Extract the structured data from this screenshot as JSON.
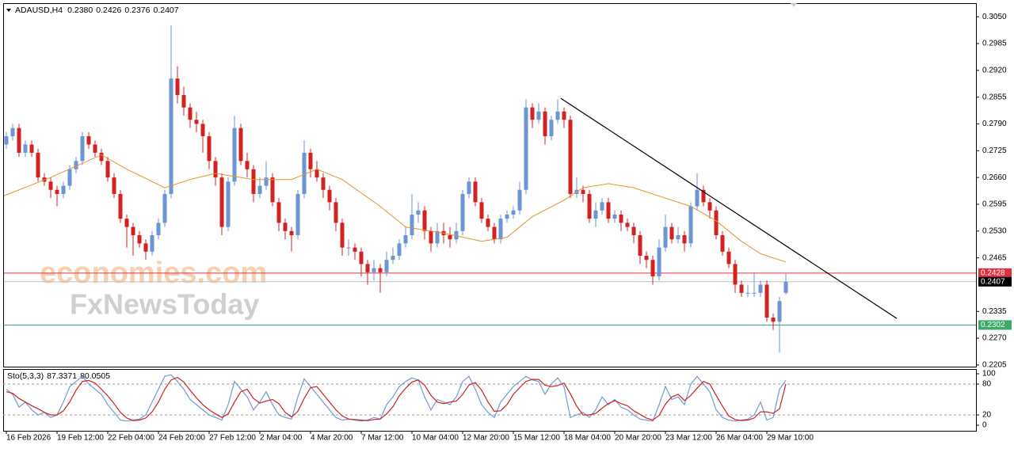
{
  "chart_data": {
    "type": "candlestick",
    "title": "ADAUSD,H4",
    "header_values": [
      "0.2380",
      "0.2426",
      "0.2376",
      "0.2407"
    ],
    "up_color": "#6b95d3",
    "down_color": "#d42020",
    "xlim": [
      -0.5,
      153
    ],
    "xticks": [
      {
        "value": 0,
        "label": "16 Feb 2026"
      },
      {
        "value": 8,
        "label": "19 Feb 12:00"
      },
      {
        "value": 16,
        "label": "22 Feb 04:00"
      },
      {
        "value": 24,
        "label": "24 Feb 20:00"
      },
      {
        "value": 32,
        "label": "27 Feb 12:00"
      },
      {
        "value": 40,
        "label": "2 Mar 04:00"
      },
      {
        "value": 48,
        "label": "4 Mar 20:00"
      },
      {
        "value": 56,
        "label": "7 Mar 12:00"
      },
      {
        "value": 64,
        "label": "10 Mar 04:00"
      },
      {
        "value": 72,
        "label": "12 Mar 20:00"
      },
      {
        "value": 80,
        "label": "15 Mar 12:00"
      },
      {
        "value": 88,
        "label": "18 Mar 04:00"
      },
      {
        "value": 96,
        "label": "20 Mar 20:00"
      },
      {
        "value": 104,
        "label": "23 Mar 12:00"
      },
      {
        "value": 112,
        "label": "26 Mar 04:00"
      },
      {
        "value": 120,
        "label": "29 Mar 10:00"
      }
    ],
    "ylim": [
      0.2201,
      0.3083
    ],
    "yticks": [
      {
        "value": 0.305,
        "label": "0.3050"
      },
      0.2985,
      {
        "value": 0.292,
        "label": "0.2920"
      },
      0.2855,
      {
        "value": 0.279,
        "label": "0.2790"
      },
      0.2725,
      {
        "value": 0.266,
        "label": "0.2660"
      },
      0.2595,
      {
        "value": 0.253,
        "label": "0.2530"
      },
      0.2465,
      0.2335,
      {
        "value": 0.227,
        "label": "0.2270"
      },
      0.2205
    ],
    "ohlc": [
      [
        0.274,
        0.277,
        0.273,
        0.276
      ],
      [
        0.276,
        0.279,
        0.275,
        0.278
      ],
      [
        0.278,
        0.279,
        0.271,
        0.272
      ],
      [
        0.272,
        0.275,
        0.271,
        0.274
      ],
      [
        0.274,
        0.275,
        0.271,
        0.272
      ],
      [
        0.272,
        0.273,
        0.265,
        0.266
      ],
      [
        0.266,
        0.267,
        0.264,
        0.265
      ],
      [
        0.265,
        0.266,
        0.261,
        0.263
      ],
      [
        0.263,
        0.264,
        0.259,
        0.262
      ],
      [
        0.262,
        0.265,
        0.261,
        0.264
      ],
      [
        0.264,
        0.269,
        0.263,
        0.268
      ],
      [
        0.268,
        0.271,
        0.267,
        0.27
      ],
      [
        0.27,
        0.277,
        0.269,
        0.276
      ],
      [
        0.276,
        0.277,
        0.273,
        0.274
      ],
      [
        0.274,
        0.275,
        0.271,
        0.272
      ],
      [
        0.272,
        0.273,
        0.269,
        0.27
      ],
      [
        0.27,
        0.271,
        0.265,
        0.266
      ],
      [
        0.266,
        0.267,
        0.261,
        0.262
      ],
      [
        0.262,
        0.263,
        0.255,
        0.256
      ],
      [
        0.256,
        0.257,
        0.249,
        0.254
      ],
      [
        0.254,
        0.255,
        0.247,
        0.252
      ],
      [
        0.252,
        0.253,
        0.249,
        0.25
      ],
      [
        0.25,
        0.251,
        0.246,
        0.248
      ],
      [
        0.248,
        0.253,
        0.247,
        0.252
      ],
      [
        0.252,
        0.256,
        0.251,
        0.255
      ],
      [
        0.255,
        0.263,
        0.254,
        0.262
      ],
      [
        0.262,
        0.303,
        0.261,
        0.29
      ],
      [
        0.29,
        0.293,
        0.284,
        0.286
      ],
      [
        0.286,
        0.288,
        0.281,
        0.283
      ],
      [
        0.283,
        0.284,
        0.278,
        0.28
      ],
      [
        0.28,
        0.282,
        0.277,
        0.279
      ],
      [
        0.279,
        0.28,
        0.272,
        0.276
      ],
      [
        0.276,
        0.277,
        0.268,
        0.27
      ],
      [
        0.27,
        0.271,
        0.264,
        0.266
      ],
      [
        0.266,
        0.267,
        0.252,
        0.254
      ],
      [
        0.254,
        0.266,
        0.253,
        0.265
      ],
      [
        0.265,
        0.281,
        0.264,
        0.278
      ],
      [
        0.278,
        0.279,
        0.269,
        0.27
      ],
      [
        0.27,
        0.272,
        0.266,
        0.268
      ],
      [
        0.268,
        0.269,
        0.26,
        0.262
      ],
      [
        0.262,
        0.266,
        0.261,
        0.264
      ],
      [
        0.264,
        0.27,
        0.263,
        0.266
      ],
      [
        0.266,
        0.267,
        0.259,
        0.26
      ],
      [
        0.26,
        0.261,
        0.253,
        0.255
      ],
      [
        0.255,
        0.256,
        0.251,
        0.253
      ],
      [
        0.253,
        0.254,
        0.248,
        0.252
      ],
      [
        0.252,
        0.263,
        0.251,
        0.262
      ],
      [
        0.262,
        0.275,
        0.261,
        0.272
      ],
      [
        0.272,
        0.273,
        0.266,
        0.268
      ],
      [
        0.268,
        0.27,
        0.265,
        0.266
      ],
      [
        0.266,
        0.267,
        0.261,
        0.263
      ],
      [
        0.263,
        0.264,
        0.258,
        0.26
      ],
      [
        0.26,
        0.261,
        0.253,
        0.255
      ],
      [
        0.255,
        0.256,
        0.247,
        0.249
      ],
      [
        0.249,
        0.251,
        0.247,
        0.249
      ],
      [
        0.249,
        0.25,
        0.246,
        0.248
      ],
      [
        0.248,
        0.249,
        0.242,
        0.245
      ],
      [
        0.245,
        0.246,
        0.24,
        0.243
      ],
      [
        0.243,
        0.246,
        0.241,
        0.244
      ],
      [
        0.244,
        0.245,
        0.238,
        0.243
      ],
      [
        0.243,
        0.248,
        0.242,
        0.246
      ],
      [
        0.246,
        0.249,
        0.245,
        0.247
      ],
      [
        0.247,
        0.251,
        0.246,
        0.25
      ],
      [
        0.25,
        0.254,
        0.249,
        0.252
      ],
      [
        0.252,
        0.262,
        0.251,
        0.257
      ],
      [
        0.257,
        0.26,
        0.255,
        0.258
      ],
      [
        0.258,
        0.259,
        0.251,
        0.253
      ],
      [
        0.253,
        0.254,
        0.248,
        0.25
      ],
      [
        0.25,
        0.255,
        0.249,
        0.253
      ],
      [
        0.253,
        0.255,
        0.25,
        0.252
      ],
      [
        0.252,
        0.254,
        0.249,
        0.251
      ],
      [
        0.251,
        0.255,
        0.25,
        0.253
      ],
      [
        0.253,
        0.263,
        0.252,
        0.262
      ],
      [
        0.262,
        0.266,
        0.261,
        0.265
      ],
      [
        0.265,
        0.266,
        0.259,
        0.26
      ],
      [
        0.26,
        0.261,
        0.255,
        0.256
      ],
      [
        0.256,
        0.257,
        0.253,
        0.254
      ],
      [
        0.254,
        0.255,
        0.25,
        0.251
      ],
      [
        0.251,
        0.257,
        0.25,
        0.256
      ],
      [
        0.256,
        0.258,
        0.255,
        0.257
      ],
      [
        0.257,
        0.259,
        0.256,
        0.258
      ],
      [
        0.258,
        0.265,
        0.257,
        0.263
      ],
      [
        0.263,
        0.285,
        0.262,
        0.283
      ],
      [
        0.283,
        0.284,
        0.278,
        0.28
      ],
      [
        0.28,
        0.284,
        0.279,
        0.282
      ],
      [
        0.282,
        0.283,
        0.274,
        0.276
      ],
      [
        0.276,
        0.281,
        0.275,
        0.28
      ],
      [
        0.28,
        0.285,
        0.279,
        0.282
      ],
      [
        0.282,
        0.283,
        0.278,
        0.28
      ],
      [
        0.28,
        0.281,
        0.261,
        0.262
      ],
      [
        0.262,
        0.266,
        0.261,
        0.263
      ],
      [
        0.263,
        0.264,
        0.26,
        0.262
      ],
      [
        0.262,
        0.263,
        0.255,
        0.256
      ],
      [
        0.256,
        0.26,
        0.254,
        0.258
      ],
      [
        0.258,
        0.261,
        0.257,
        0.26
      ],
      [
        0.26,
        0.261,
        0.255,
        0.256
      ],
      [
        0.256,
        0.258,
        0.255,
        0.257
      ],
      [
        0.257,
        0.258,
        0.253,
        0.255
      ],
      [
        0.255,
        0.256,
        0.253,
        0.254
      ],
      [
        0.254,
        0.255,
        0.25,
        0.252
      ],
      [
        0.252,
        0.253,
        0.245,
        0.247
      ],
      [
        0.247,
        0.248,
        0.244,
        0.246
      ],
      [
        0.246,
        0.247,
        0.24,
        0.242
      ],
      [
        0.242,
        0.251,
        0.241,
        0.249
      ],
      [
        0.249,
        0.257,
        0.248,
        0.254
      ],
      [
        0.254,
        0.255,
        0.25,
        0.251
      ],
      [
        0.251,
        0.254,
        0.25,
        0.252
      ],
      [
        0.252,
        0.253,
        0.248,
        0.25
      ],
      [
        0.25,
        0.26,
        0.249,
        0.259
      ],
      [
        0.259,
        0.267,
        0.258,
        0.263
      ],
      [
        0.263,
        0.264,
        0.259,
        0.26
      ],
      [
        0.26,
        0.261,
        0.256,
        0.258
      ],
      [
        0.258,
        0.259,
        0.251,
        0.252
      ],
      [
        0.252,
        0.253,
        0.247,
        0.248
      ],
      [
        0.248,
        0.249,
        0.244,
        0.245
      ],
      [
        0.245,
        0.246,
        0.238,
        0.24
      ],
      [
        0.24,
        0.241,
        0.237,
        0.238
      ],
      [
        0.238,
        0.24,
        0.237,
        0.238
      ],
      [
        0.238,
        0.243,
        0.237,
        0.238
      ],
      [
        0.238,
        0.241,
        0.237,
        0.24
      ],
      [
        0.24,
        0.241,
        0.231,
        0.232
      ],
      [
        0.232,
        0.233,
        0.229,
        0.231
      ],
      [
        0.231,
        0.237,
        0.2235,
        0.236
      ],
      [
        0.238,
        0.2426,
        0.2376,
        0.2407
      ]
    ],
    "ma": {
      "color": "#e8912a",
      "x": [
        -0.5,
        7,
        15,
        19,
        25,
        29,
        33,
        39,
        45,
        49,
        53,
        59,
        63,
        69,
        75,
        79,
        83,
        88,
        91,
        95,
        99,
        104,
        108,
        112,
        116,
        119,
        123
      ],
      "values": [
        0.2615,
        0.266,
        0.2715,
        0.268,
        0.2635,
        0.2655,
        0.267,
        0.2655,
        0.2655,
        0.268,
        0.2655,
        0.259,
        0.254,
        0.2525,
        0.2505,
        0.2515,
        0.2565,
        0.2605,
        0.2635,
        0.2645,
        0.2635,
        0.261,
        0.259,
        0.2555,
        0.2505,
        0.2475,
        0.2455
      ]
    },
    "trendline": {
      "color": "#000000",
      "x": [
        87.5,
        140.5
      ],
      "values": [
        0.2852,
        0.2318
      ]
    },
    "levels": [
      {
        "value": 0.2428,
        "color": "#e03040",
        "line_color": "#e03040"
      },
      {
        "value": 0.2407,
        "color": "#000000",
        "line_color": "#c0c0c0"
      },
      {
        "value": 0.2302,
        "color": "#3daa6a",
        "line_color": "#3daa6a"
      }
    ],
    "watermark": [
      "economies.com",
      "FxNewsToday"
    ],
    "indicator": {
      "type": "line",
      "title": "Sto(5,3,3)",
      "header_values": [
        87.3371,
        80.0505
      ],
      "ylim": [
        -10.8,
        109.2
      ],
      "yticks": [
        100,
        80,
        20,
        0
      ],
      "series": [
        {
          "color": "#6f9bd6",
          "values": [
            70,
            60,
            35,
            45,
            30,
            20,
            25,
            15,
            20,
            45,
            75,
            85,
            95,
            80,
            70,
            60,
            40,
            25,
            10,
            8,
            10,
            12,
            20,
            45,
            70,
            95,
            98,
            85,
            70,
            50,
            40,
            30,
            20,
            15,
            10,
            40,
            85,
            70,
            55,
            30,
            45,
            65,
            40,
            20,
            15,
            12,
            55,
            90,
            75,
            60,
            45,
            30,
            15,
            10,
            12,
            10,
            8,
            10,
            15,
            12,
            40,
            55,
            75,
            85,
            92,
            88,
            55,
            30,
            50,
            45,
            40,
            55,
            85,
            95,
            70,
            40,
            25,
            15,
            45,
            60,
            75,
            85,
            95,
            88,
            85,
            60,
            80,
            92,
            75,
            15,
            20,
            25,
            15,
            30,
            55,
            40,
            50,
            35,
            30,
            20,
            12,
            10,
            8,
            40,
            75,
            50,
            55,
            40,
            80,
            95,
            80,
            65,
            30,
            15,
            10,
            8,
            10,
            12,
            20,
            45,
            10,
            15,
            70,
            87.3371
          ]
        },
        {
          "color": "#d02020",
          "values": [
            65,
            62,
            52,
            45,
            38,
            32,
            25,
            20,
            20,
            28,
            45,
            68,
            85,
            87,
            82,
            70,
            57,
            42,
            25,
            14,
            9,
            10,
            14,
            26,
            45,
            70,
            88,
            93,
            84,
            68,
            53,
            40,
            30,
            22,
            15,
            22,
            45,
            65,
            70,
            52,
            43,
            47,
            50,
            42,
            25,
            16,
            27,
            52,
            73,
            75,
            60,
            45,
            30,
            18,
            12,
            11,
            10,
            9,
            11,
            12,
            22,
            36,
            57,
            72,
            84,
            88,
            78,
            58,
            45,
            42,
            45,
            47,
            60,
            78,
            83,
            68,
            45,
            27,
            28,
            40,
            60,
            73,
            85,
            89,
            89,
            78,
            75,
            77,
            82,
            61,
            37,
            20,
            20,
            23,
            33,
            42,
            48,
            42,
            38,
            28,
            21,
            14,
            10,
            19,
            41,
            55,
            60,
            48,
            58,
            72,
            85,
            80,
            58,
            37,
            18,
            11,
            9,
            10,
            14,
            26,
            26,
            23,
            32,
            80.0505
          ]
        }
      ]
    }
  }
}
